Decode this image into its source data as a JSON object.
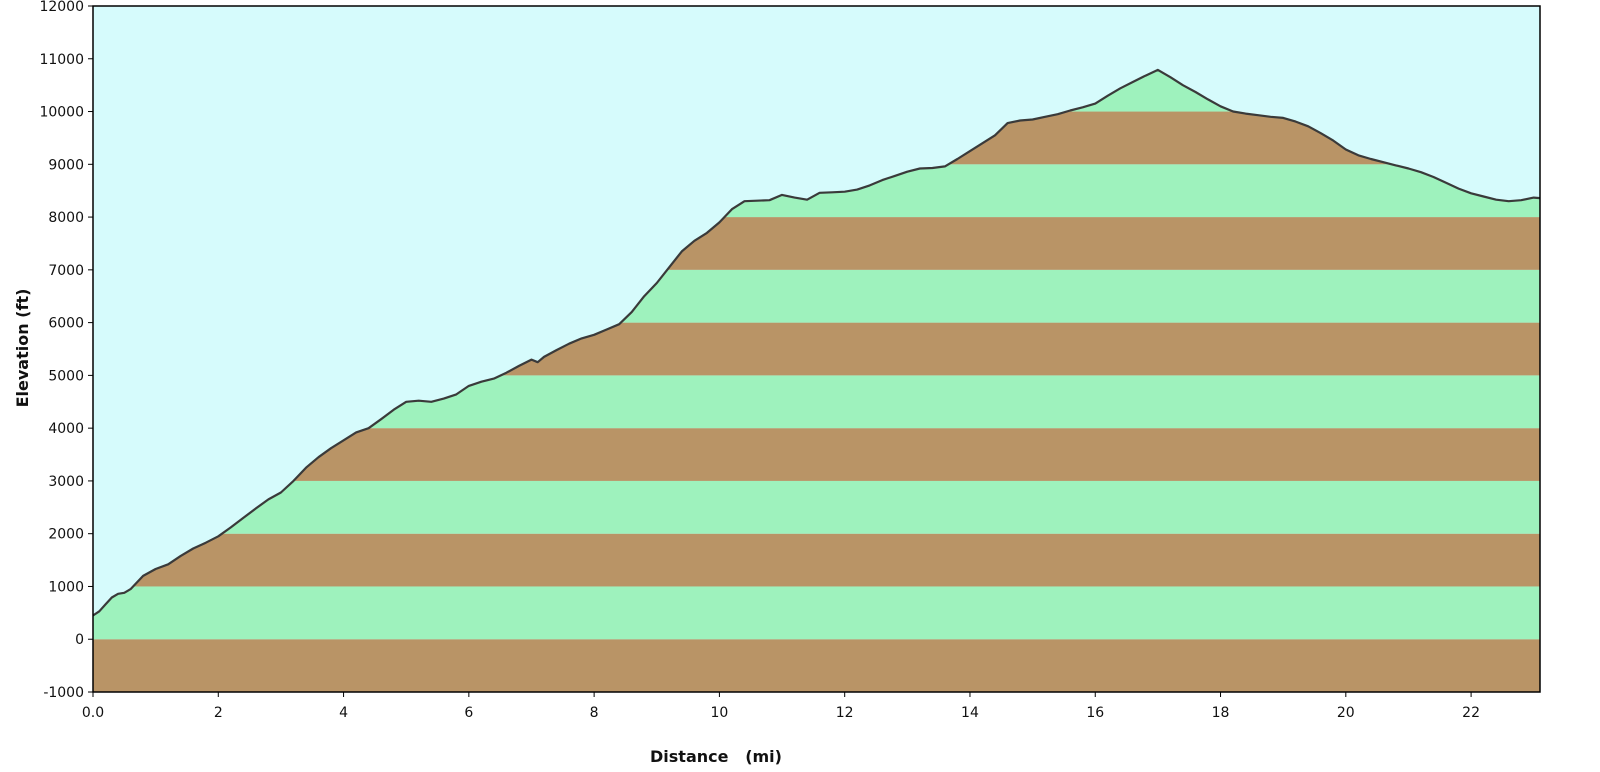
{
  "chart_data": {
    "type": "area",
    "title": "",
    "xlabel": "Distance   (mi)",
    "ylabel": "Elevation (ft)",
    "xlim": [
      0,
      23.1
    ],
    "ylim": [
      -1000,
      12000
    ],
    "x_ticks": [
      "0.0",
      "2",
      "4",
      "6",
      "8",
      "10",
      "12",
      "14",
      "16",
      "18",
      "20",
      "22"
    ],
    "x_tick_values": [
      0,
      2,
      4,
      6,
      8,
      10,
      12,
      14,
      16,
      18,
      20,
      22
    ],
    "y_ticks": [
      "-1000",
      "0",
      "1000",
      "2000",
      "3000",
      "4000",
      "5000",
      "6000",
      "7000",
      "8000",
      "9000",
      "10000",
      "11000",
      "12000"
    ],
    "y_tick_values": [
      -1000,
      0,
      1000,
      2000,
      3000,
      4000,
      5000,
      6000,
      7000,
      8000,
      9000,
      10000,
      11000,
      12000
    ],
    "grid": false,
    "band_interval_ft": 1000,
    "series": [
      {
        "x": [
          0.0,
          0.1,
          0.2,
          0.3,
          0.4,
          0.5,
          0.6,
          0.8,
          1.0,
          1.2,
          1.4,
          1.6,
          1.8,
          2.0,
          2.2,
          2.4,
          2.6,
          2.8,
          3.0,
          3.2,
          3.4,
          3.6,
          3.8,
          4.0,
          4.2,
          4.4,
          4.6,
          4.8,
          5.0,
          5.2,
          5.4,
          5.6,
          5.8,
          6.0,
          6.2,
          6.4,
          6.6,
          6.8,
          7.0,
          7.1,
          7.2,
          7.4,
          7.6,
          7.8,
          8.0,
          8.2,
          8.4,
          8.6,
          8.8,
          9.0,
          9.2,
          9.4,
          9.6,
          9.8,
          10.0,
          10.2,
          10.4,
          10.6,
          10.8,
          11.0,
          11.2,
          11.4,
          11.6,
          11.8,
          12.0,
          12.2,
          12.4,
          12.6,
          12.8,
          13.0,
          13.2,
          13.4,
          13.6,
          13.8,
          14.0,
          14.2,
          14.4,
          14.6,
          14.8,
          15.0,
          15.2,
          15.4,
          15.6,
          15.8,
          16.0,
          16.2,
          16.4,
          16.6,
          16.8,
          17.0,
          17.2,
          17.4,
          17.6,
          17.8,
          18.0,
          18.2,
          18.4,
          18.6,
          18.8,
          19.0,
          19.2,
          19.4,
          19.6,
          19.8,
          20.0,
          20.2,
          20.4,
          20.6,
          20.8,
          21.0,
          21.2,
          21.4,
          21.6,
          21.8,
          22.0,
          22.2,
          22.4,
          22.6,
          22.8,
          23.0,
          23.1
        ],
        "y": [
          450,
          530,
          660,
          790,
          860,
          880,
          950,
          1200,
          1330,
          1420,
          1580,
          1720,
          1830,
          1950,
          2120,
          2300,
          2480,
          2650,
          2780,
          3000,
          3250,
          3450,
          3620,
          3770,
          3920,
          4000,
          4170,
          4350,
          4500,
          4520,
          4500,
          4560,
          4640,
          4800,
          4880,
          4940,
          5050,
          5180,
          5300,
          5250,
          5350,
          5480,
          5600,
          5700,
          5770,
          5870,
          5970,
          6200,
          6500,
          6750,
          7050,
          7350,
          7550,
          7700,
          7900,
          8150,
          8300,
          8310,
          8320,
          8420,
          8370,
          8330,
          8460,
          8470,
          8480,
          8520,
          8600,
          8700,
          8780,
          8860,
          8920,
          8930,
          8960,
          9100,
          9250,
          9400,
          9550,
          9780,
          9830,
          9850,
          9900,
          9950,
          10020,
          10080,
          10150,
          10300,
          10440,
          10560,
          10680,
          10790,
          10650,
          10500,
          10370,
          10230,
          10100,
          10000,
          9960,
          9930,
          9900,
          9880,
          9810,
          9720,
          9590,
          9450,
          9280,
          9170,
          9100,
          9040,
          8980,
          8920,
          8850,
          8760,
          8650,
          8540,
          8450,
          8390,
          8330,
          8300,
          8320,
          8370,
          8360
        ]
      }
    ],
    "colors": {
      "sky": "#d6fbfc",
      "band_green": "#9ef2bd",
      "band_brown": "#b99466",
      "profile_line": "#3a3a3a",
      "frame": "#000000"
    }
  }
}
